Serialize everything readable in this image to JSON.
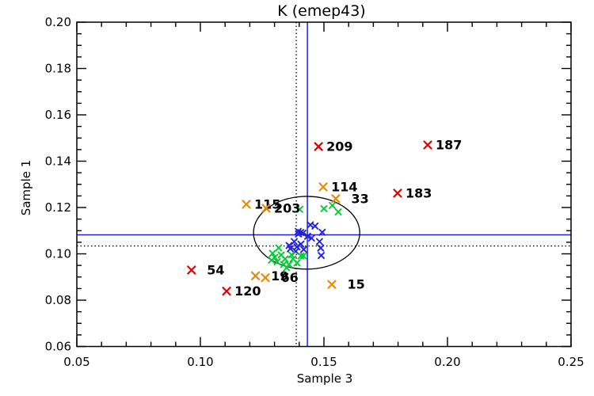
{
  "window": {
    "background": "#ffffff"
  },
  "chart_data": {
    "type": "scatter",
    "title": "K (emep43)",
    "xlabel": "Sample 3",
    "ylabel": "Sample 1",
    "xlim": [
      0.05,
      0.25
    ],
    "ylim": [
      0.06,
      0.2
    ],
    "x_major_step": 0.05,
    "x_minor_step": 0.01,
    "y_major_step": 0.02,
    "y_minor_step": 0.005,
    "x_tick_labels": [
      "0.05",
      "0.10",
      "0.15",
      "0.20",
      "0.25"
    ],
    "y_tick_labels": [
      "0.06",
      "0.08",
      "0.10",
      "0.12",
      "0.14",
      "0.16",
      "0.18",
      "0.20"
    ],
    "grid": false,
    "marker": "x",
    "axis_color": "#000000",
    "crosshair_solid": {
      "x": 0.1433,
      "y": 0.1082,
      "color": "#2222dd",
      "style": "solid"
    },
    "crosshair_dotted": {
      "x": 0.1388,
      "y": 0.1034,
      "color": "#000000",
      "style": "dotted"
    },
    "ellipse": {
      "cx": 0.143,
      "cy": 0.1091,
      "rx": 0.0215,
      "ry": 0.0157,
      "color": "#000000"
    },
    "series": [
      {
        "name": "cluster-blue",
        "color": "#2222dd",
        "labeled": false,
        "points": [
          [
            0.1445,
            0.1125
          ],
          [
            0.1464,
            0.112
          ],
          [
            0.1396,
            0.1097
          ],
          [
            0.1406,
            0.1092
          ],
          [
            0.1415,
            0.1089
          ],
          [
            0.1397,
            0.1086
          ],
          [
            0.1493,
            0.1093
          ],
          [
            0.1434,
            0.1076
          ],
          [
            0.145,
            0.1068
          ],
          [
            0.1482,
            0.1053
          ],
          [
            0.138,
            0.1053
          ],
          [
            0.1359,
            0.1036
          ],
          [
            0.1407,
            0.1042
          ],
          [
            0.1391,
            0.103
          ],
          [
            0.1364,
            0.1022
          ],
          [
            0.1487,
            0.1025
          ],
          [
            0.1418,
            0.1019
          ],
          [
            0.1386,
            0.1011
          ],
          [
            0.1489,
            0.0993
          ]
        ]
      },
      {
        "name": "cluster-green",
        "color": "#00cc33",
        "labeled": false,
        "points": [
          [
            0.1402,
            0.1192
          ],
          [
            0.15,
            0.1195
          ],
          [
            0.1534,
            0.1209
          ],
          [
            0.1558,
            0.1181
          ],
          [
            0.1317,
            0.1026
          ],
          [
            0.1292,
            0.1002
          ],
          [
            0.1327,
            0.0995
          ],
          [
            0.1369,
            0.0996
          ],
          [
            0.1407,
            0.0991
          ],
          [
            0.1417,
            0.0991
          ],
          [
            0.1301,
            0.0985
          ],
          [
            0.1343,
            0.0978
          ],
          [
            0.1375,
            0.0978
          ],
          [
            0.1288,
            0.0973
          ],
          [
            0.1311,
            0.0966
          ],
          [
            0.1391,
            0.0961
          ],
          [
            0.1337,
            0.0954
          ],
          [
            0.1359,
            0.0954
          ],
          [
            0.1349,
            0.094
          ]
        ]
      },
      {
        "name": "labeled-orange",
        "color": "#ee8800",
        "labeled": true,
        "points": [
          {
            "x": 0.1497,
            "y": 0.1289,
            "label": "114"
          },
          {
            "x": 0.1548,
            "y": 0.1238,
            "label": "33"
          },
          {
            "x": 0.1186,
            "y": 0.1214,
            "label": "115"
          },
          {
            "x": 0.1266,
            "y": 0.1197,
            "label": "203"
          },
          {
            "x": 0.1223,
            "y": 0.0905,
            "label": "19"
          },
          {
            "x": 0.1263,
            "y": 0.0897,
            "label": "66"
          },
          {
            "x": 0.1532,
            "y": 0.0868,
            "label": "15"
          }
        ]
      },
      {
        "name": "labeled-red",
        "color": "#dd0000",
        "labeled": true,
        "points": [
          {
            "x": 0.1478,
            "y": 0.1463,
            "label": "209"
          },
          {
            "x": 0.192,
            "y": 0.147,
            "label": "187"
          },
          {
            "x": 0.1798,
            "y": 0.1262,
            "label": "183"
          },
          {
            "x": 0.0964,
            "y": 0.093,
            "label": "54"
          },
          {
            "x": 0.1106,
            "y": 0.0839,
            "label": "120"
          }
        ]
      }
    ]
  }
}
